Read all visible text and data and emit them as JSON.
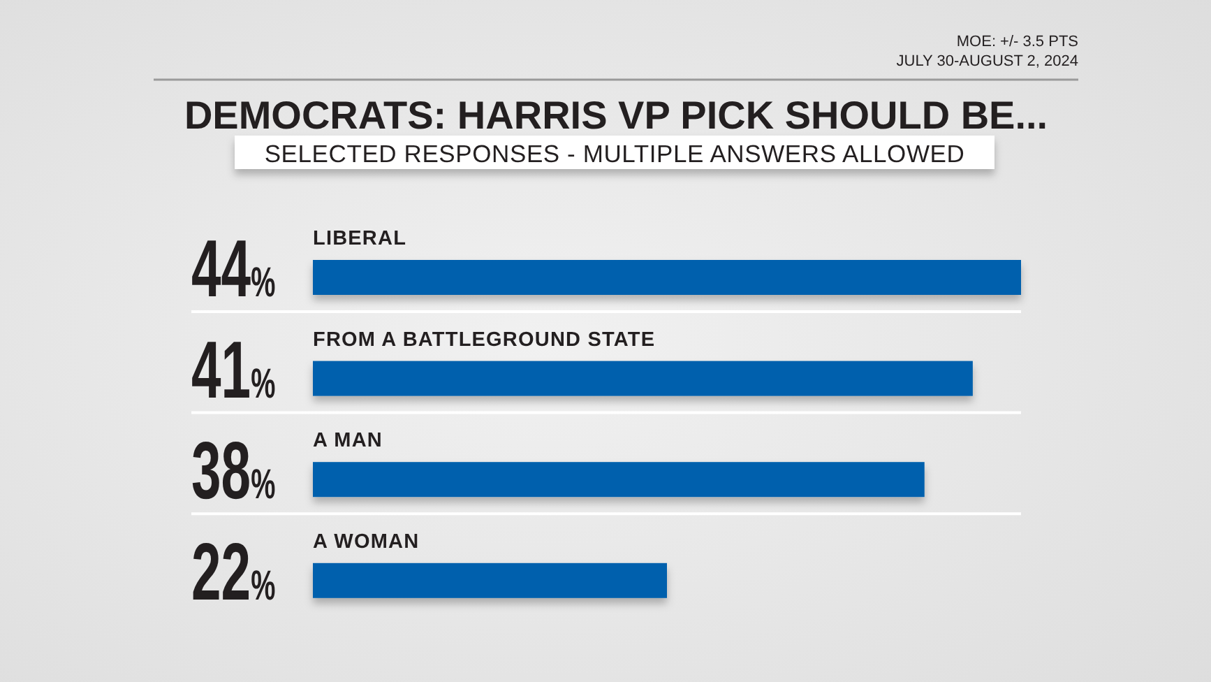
{
  "chart_data": {
    "type": "bar",
    "orientation": "horizontal",
    "title": "DEMOCRATS: HARRIS VP PICK SHOULD BE...",
    "subtitle": "SELECTED RESPONSES - MULTIPLE ANSWERS ALLOWED",
    "annotations": [
      "MOE: +/- 3.5 PTS",
      "JULY 30-AUGUST 2, 2024"
    ],
    "categories": [
      "LIBERAL",
      "FROM A BATTLEGROUND STATE",
      "A MAN",
      "A WOMAN"
    ],
    "values": [
      44,
      41,
      38,
      22
    ],
    "value_labels": [
      "44%",
      "41%",
      "38%",
      "22%"
    ],
    "color": "#0061ad",
    "grid": true
  }
}
